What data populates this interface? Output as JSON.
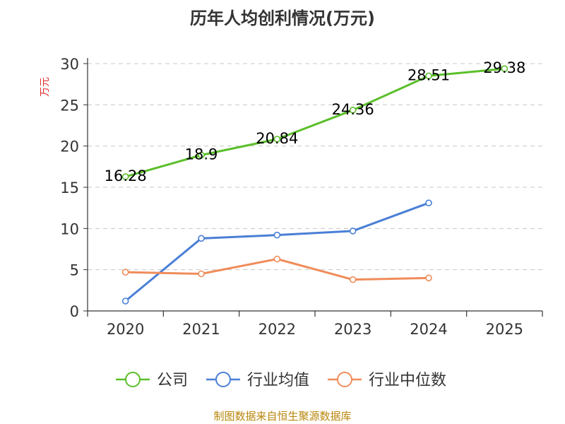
{
  "chart_data": {
    "type": "line",
    "title": "历年人均创利情况(万元)",
    "ylabel": "万元",
    "xlabel": "",
    "categories": [
      "2020",
      "2021",
      "2022",
      "2023",
      "2024",
      "2025"
    ],
    "ylim": [
      0,
      30
    ],
    "yticks": [
      0,
      5,
      10,
      15,
      20,
      25,
      30
    ],
    "grid": true,
    "legend_position": "bottom",
    "series": [
      {
        "name": "公司",
        "color": "#5bbf2a",
        "values": [
          16.28,
          18.9,
          20.84,
          24.36,
          28.51,
          29.38
        ],
        "labels": [
          "16.28",
          "18.9",
          "20.84",
          "24.36",
          "28.51",
          "29.38"
        ]
      },
      {
        "name": "行业均值",
        "color": "#4a7fd6",
        "values": [
          1.2,
          8.8,
          9.2,
          9.7,
          13.1,
          null
        ]
      },
      {
        "name": "行业中位数",
        "color": "#f08c5a",
        "values": [
          4.7,
          4.5,
          6.3,
          3.8,
          4.0,
          null
        ]
      }
    ]
  },
  "source_text": "制图数据来自恒生聚源数据库"
}
